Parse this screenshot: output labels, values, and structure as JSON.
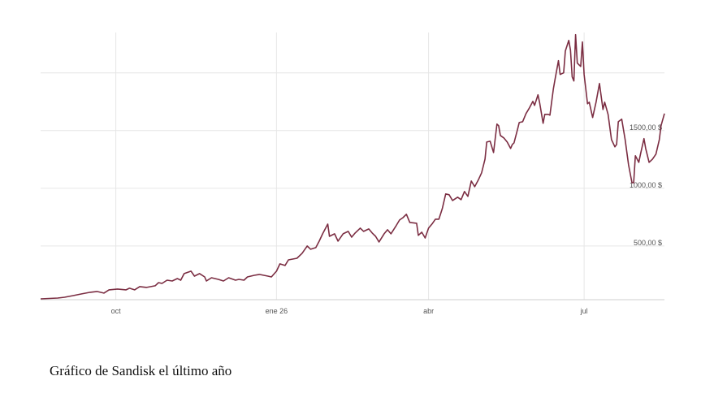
{
  "chart_data": {
    "type": "line",
    "caption": "Gráfico de Sandisk el último año",
    "x": [
      0,
      10,
      14,
      19,
      24,
      29,
      33,
      37,
      40,
      45,
      50,
      52,
      55,
      58,
      62,
      67,
      69,
      71,
      74,
      77,
      80,
      82,
      84,
      88,
      90,
      93,
      96,
      97,
      100,
      104,
      107,
      110,
      114,
      116,
      119,
      121,
      125,
      128,
      133,
      135,
      138,
      140,
      143,
      145,
      150,
      153,
      156,
      158,
      161,
      163,
      165,
      168,
      169,
      172,
      174,
      177,
      180,
      182,
      184,
      187,
      189,
      192,
      194,
      196,
      198,
      201,
      203,
      205,
      208,
      210,
      212,
      214,
      216,
      220,
      221,
      223,
      225,
      227,
      229,
      231,
      233,
      235,
      237,
      239,
      241,
      244,
      246,
      248,
      250,
      252,
      254,
      256,
      258,
      260,
      261,
      263,
      265,
      267,
      268,
      269,
      271,
      273,
      275,
      276,
      277,
      279,
      280,
      282,
      284,
      286,
      288,
      289,
      291,
      292,
      294,
      295,
      297,
      298,
      300,
      301,
      303,
      304,
      306,
      307,
      309,
      310,
      311,
      312,
      313,
      314,
      316,
      317,
      318,
      320,
      321,
      323,
      325,
      327,
      329,
      330,
      332,
      334,
      336,
      337,
      338,
      340,
      342,
      344,
      346,
      347,
      348,
      350,
      351,
      353,
      354,
      356,
      358,
      360,
      362,
      363,
      365
    ],
    "series": [
      {
        "name": "Sandisk",
        "color": "#7b2d42",
        "values": [
          42,
          49,
          56,
          70,
          85,
          99,
          106,
          92,
          120,
          127,
          120,
          134,
          120,
          148,
          141,
          155,
          183,
          176,
          204,
          197,
          218,
          204,
          261,
          282,
          239,
          261,
          232,
          197,
          225,
          211,
          197,
          225,
          204,
          211,
          204,
          232,
          246,
          254,
          239,
          232,
          282,
          345,
          331,
          380,
          394,
          437,
          500,
          472,
          486,
          542,
          606,
          690,
          584,
          606,
          542,
          606,
          627,
          577,
          613,
          655,
          627,
          648,
          613,
          584,
          535,
          606,
          641,
          606,
          676,
          725,
          746,
          775,
          704,
          697,
          592,
          620,
          570,
          655,
          690,
          732,
          732,
          824,
          951,
          944,
          894,
          923,
          901,
          972,
          930,
          1063,
          1014,
          1070,
          1134,
          1253,
          1401,
          1408,
          1310,
          1556,
          1542,
          1458,
          1437,
          1401,
          1345,
          1380,
          1394,
          1507,
          1570,
          1577,
          1648,
          1697,
          1753,
          1718,
          1810,
          1739,
          1563,
          1641,
          1641,
          1634,
          1859,
          1944,
          2106,
          1986,
          2000,
          2190,
          2282,
          2197,
          1965,
          1930,
          2331,
          2085,
          2056,
          2268,
          1986,
          1732,
          1746,
          1613,
          1746,
          1908,
          1683,
          1746,
          1641,
          1422,
          1359,
          1380,
          1577,
          1599,
          1422,
          1204,
          1049,
          1049,
          1282,
          1225,
          1296,
          1430,
          1345,
          1225,
          1253,
          1296,
          1422,
          1542,
          1648
        ]
      }
    ],
    "xlim": [
      0,
      365
    ],
    "xticks": [
      {
        "value": 44,
        "label": "oct"
      },
      {
        "value": 138,
        "label": "ene 26"
      },
      {
        "value": 227,
        "label": "abr"
      },
      {
        "value": 318,
        "label": "jul"
      }
    ],
    "ylim": [
      35,
      2350
    ],
    "yticks": [
      {
        "value": 500,
        "label": "500,00 $"
      },
      {
        "value": 1000,
        "label": "1000,00 $"
      },
      {
        "value": 1500,
        "label": "1500,00 $"
      }
    ],
    "ygrid": [
      500,
      1000,
      1500,
      2000
    ],
    "grid": true
  }
}
